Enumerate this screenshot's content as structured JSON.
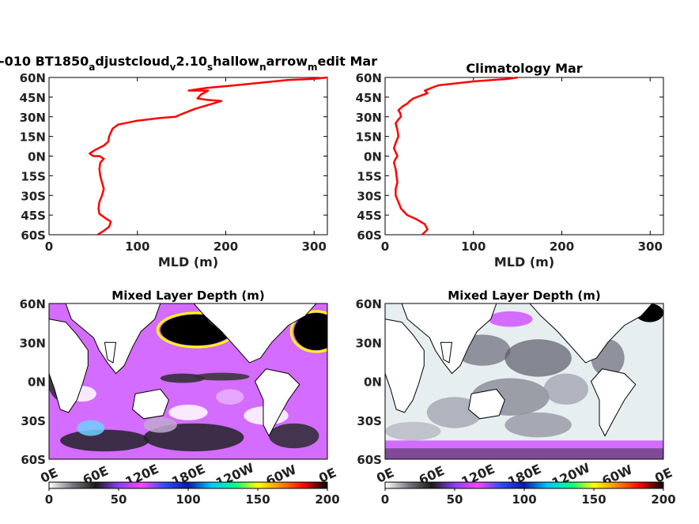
{
  "figure": {
    "panels": {
      "top_left_title": "-010 BT1850",
      "top_left_title_parts": [
        {
          "text": "-010 BT1850",
          "sub": false
        },
        {
          "text": "a",
          "sub": true
        },
        {
          "text": "djustcloud",
          "sub": false
        },
        {
          "text": "v",
          "sub": true
        },
        {
          "text": "2.10",
          "sub": false
        },
        {
          "text": "s",
          "sub": true
        },
        {
          "text": "hallow",
          "sub": false
        },
        {
          "text": "n",
          "sub": true
        },
        {
          "text": "arrow",
          "sub": false
        },
        {
          "text": "m",
          "sub": true
        },
        {
          "text": "edit Mar",
          "sub": false
        }
      ],
      "top_right_title": "Climatology Mar",
      "bottom_left_title": "Mixed Layer Depth (m)",
      "bottom_right_title": "Mixed Layer Depth (m)"
    },
    "profile_axis": {
      "xlabel": "MLD (m)",
      "xticks": [
        "0",
        "100",
        "200",
        "300"
      ],
      "yticks": [
        "60N",
        "45N",
        "30N",
        "15N",
        "0N",
        "15S",
        "30S",
        "45S",
        "60S"
      ]
    },
    "map_axis": {
      "yticks": [
        "60N",
        "30N",
        "0N",
        "30S",
        "60S"
      ],
      "xticks": [
        "0E",
        "60E",
        "120E",
        "180E",
        "120W",
        "60W",
        "0E"
      ]
    },
    "colorbar": {
      "ticks": [
        "0",
        "50",
        "100",
        "150",
        "200"
      ],
      "colors": [
        "#ffffff",
        "#7a7a86",
        "#1a1a1a",
        "#8c3cff",
        "#ff44ff",
        "#2b4dff",
        "#0a1aa8",
        "#00c8ff",
        "#00ff88",
        "#ffff00",
        "#ff8800",
        "#ff0000",
        "#000000"
      ]
    },
    "line_color": "#ff0000"
  },
  "chart_data": [
    {
      "type": "line",
      "title": "-010 BT1850adjustcloudv2.10shallownarrowmedit Mar",
      "xlabel": "MLD (m)",
      "ylabel": "",
      "xlim": [
        0,
        315
      ],
      "ylim": [
        -60,
        60
      ],
      "series": [
        {
          "x": [
            55,
            62,
            68,
            70,
            63,
            57,
            56,
            57,
            60,
            62,
            60,
            58,
            57,
            58,
            62,
            57,
            50,
            46,
            53,
            62,
            67,
            68,
            70,
            72,
            78,
            100,
            125,
            143,
            150,
            165,
            185,
            195,
            178,
            168,
            172,
            180,
            158,
            178,
            210,
            240,
            270,
            300,
            315
          ],
          "y": [
            -60,
            -57,
            -54,
            -50,
            -47,
            -44,
            -40,
            -35,
            -30,
            -25,
            -20,
            -15,
            -10,
            -5,
            -2,
            0,
            0,
            2,
            5,
            8,
            11,
            15,
            18,
            21,
            24,
            27,
            29,
            30,
            32,
            36,
            40,
            42,
            43,
            44,
            47,
            50,
            50,
            52,
            54,
            56,
            58,
            59,
            60
          ]
        }
      ]
    },
    {
      "type": "line",
      "title": "Climatology Mar",
      "xlabel": "MLD (m)",
      "ylabel": "",
      "xlim": [
        0,
        315
      ],
      "ylim": [
        -60,
        60
      ],
      "series": [
        {
          "x": [
            42,
            48,
            45,
            35,
            25,
            18,
            15,
            12,
            12,
            14,
            13,
            12,
            10,
            12,
            14,
            12,
            10,
            12,
            15,
            14,
            12,
            15,
            18,
            17,
            15,
            20,
            25,
            28,
            32,
            40,
            48,
            45,
            60,
            100,
            140,
            150
          ],
          "y": [
            -60,
            -56,
            -52,
            -48,
            -45,
            -40,
            -35,
            -30,
            -25,
            -20,
            -15,
            -10,
            -5,
            -2,
            0,
            3,
            6,
            10,
            15,
            20,
            25,
            28,
            30,
            33,
            35,
            38,
            40,
            42,
            44,
            46,
            48,
            50,
            54,
            57,
            59,
            60
          ]
        }
      ]
    },
    {
      "type": "heatmap",
      "title": "Mixed Layer Depth (m)",
      "xlabel": "",
      "ylabel": "",
      "xticks": [
        "0E",
        "60E",
        "120E",
        "180E",
        "120W",
        "60W",
        "0E"
      ],
      "yticks": [
        "60N",
        "30N",
        "0N",
        "30S",
        "60S"
      ],
      "colorbar_range": [
        0,
        200
      ]
    },
    {
      "type": "heatmap",
      "title": "Mixed Layer Depth (m)",
      "xlabel": "",
      "ylabel": "",
      "xticks": [
        "0E",
        "60E",
        "120E",
        "180E",
        "120W",
        "60W",
        "0E"
      ],
      "yticks": [
        "60N",
        "30N",
        "0N",
        "30S",
        "60S"
      ],
      "colorbar_range": [
        0,
        200
      ]
    }
  ]
}
